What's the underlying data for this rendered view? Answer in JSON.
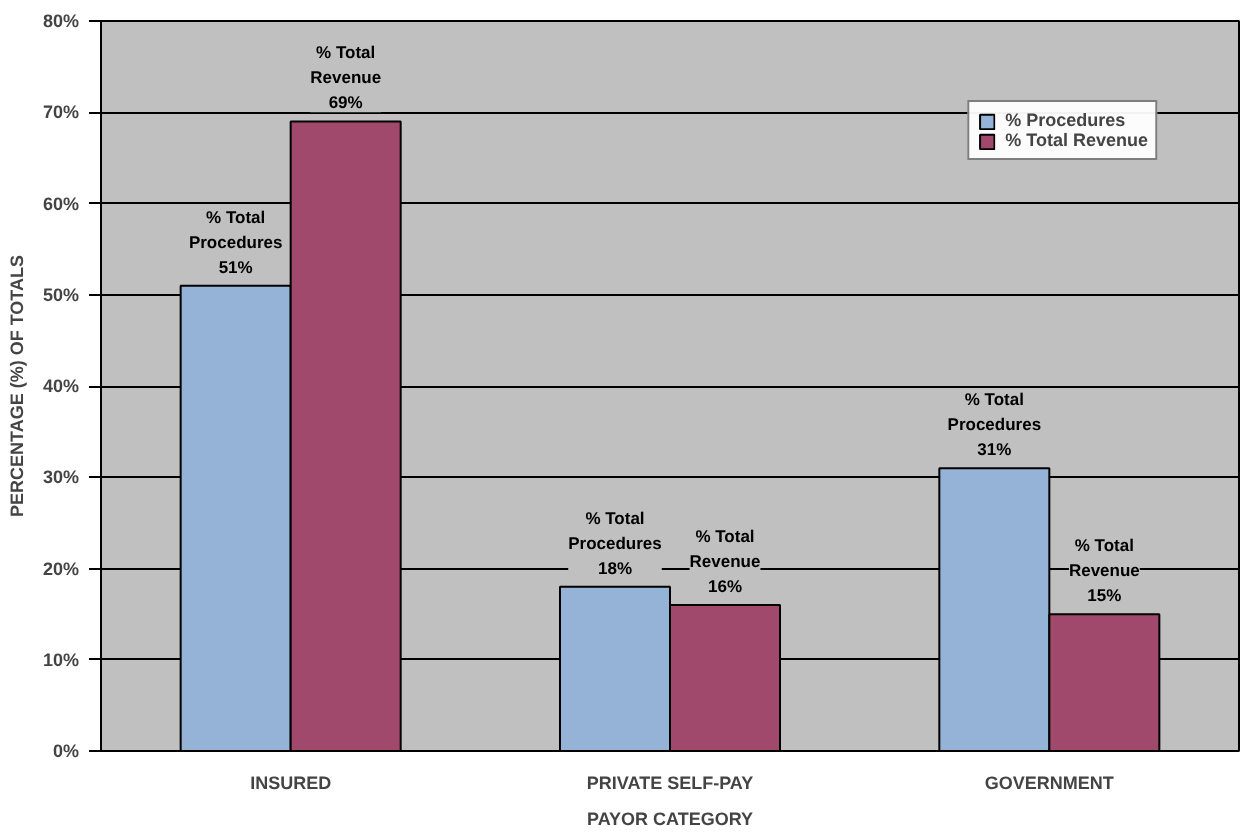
{
  "chart_data": {
    "type": "bar",
    "categories": [
      "INSURED",
      "PRIVATE SELF-PAY",
      "GOVERNMENT"
    ],
    "series": [
      {
        "name": "% Procedures",
        "color": "#95b3d7",
        "values": [
          51,
          18,
          31
        ],
        "value_labels": [
          "% Total\nProcedures\n51%",
          "% Total\nProcedures\n18%",
          "% Total\nProcedures\n31%"
        ]
      },
      {
        "name": "% Total Revenue",
        "color": "#a0496d",
        "values": [
          69,
          16,
          15
        ],
        "value_labels": [
          "% Total\nRevenue\n69%",
          "% Total\nRevenue\n16%",
          "% Total\nRevenue\n15%"
        ]
      }
    ],
    "xlabel": "PAYOR CATEGORY",
    "ylabel": "PERCENTAGE (%) OF TOTALS",
    "ylim": [
      0,
      80
    ],
    "yticks": [
      {
        "value": 0,
        "label": "0%"
      },
      {
        "value": 10,
        "label": "10%"
      },
      {
        "value": 20,
        "label": "20%"
      },
      {
        "value": 30,
        "label": "30%"
      },
      {
        "value": 40,
        "label": "40%"
      },
      {
        "value": 50,
        "label": "50%"
      },
      {
        "value": 60,
        "label": "60%"
      },
      {
        "value": 70,
        "label": "70%"
      },
      {
        "value": 80,
        "label": "80%"
      }
    ],
    "grid": "y",
    "legend": "top right"
  }
}
